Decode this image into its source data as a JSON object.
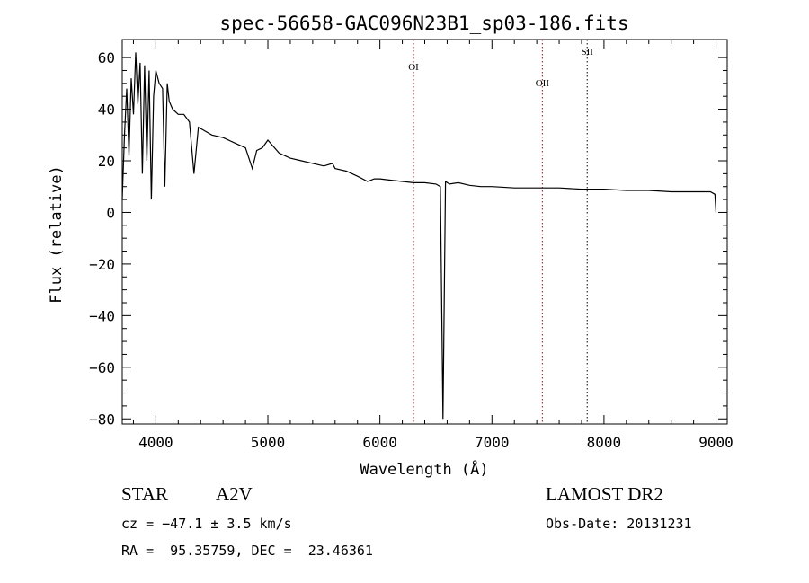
{
  "chart_data": {
    "type": "line",
    "title": "spec-56658-GAC096N23B1_sp03-186.fits",
    "xlabel": "Wavelength (Å)",
    "ylabel": "Flux (relative)",
    "xlim": [
      3700,
      9100
    ],
    "ylim": [
      -82,
      67
    ],
    "xticks": [
      4000,
      5000,
      6000,
      7000,
      8000,
      9000
    ],
    "yticks": [
      -80,
      -60,
      -40,
      -20,
      0,
      20,
      40,
      60
    ],
    "grid": false,
    "line_color": "#000000",
    "series": [
      {
        "x": [
          3700,
          3720,
          3740,
          3760,
          3780,
          3800,
          3820,
          3840,
          3860,
          3880,
          3900,
          3920,
          3940,
          3960,
          3980,
          4000,
          4030,
          4060,
          4080,
          4102,
          4120,
          4150,
          4200,
          4250,
          4300,
          4340,
          4380,
          4420,
          4500,
          4600,
          4700,
          4800,
          4861,
          4900,
          4950,
          5000,
          5100,
          5200,
          5300,
          5400,
          5500,
          5577,
          5600,
          5700,
          5800,
          5890,
          5950,
          6000,
          6100,
          6200,
          6300,
          6400,
          6500,
          6540,
          6563,
          6585,
          6620,
          6700,
          6800,
          6900,
          7000,
          7200,
          7400,
          7600,
          7800,
          8000,
          8200,
          8400,
          8600,
          8800,
          8950,
          8990,
          9000
        ],
        "y": [
          5,
          30,
          48,
          22,
          52,
          38,
          62,
          42,
          58,
          15,
          57,
          20,
          55,
          5,
          45,
          55,
          50,
          48,
          10,
          50,
          43,
          40,
          38,
          38,
          35,
          15,
          33,
          32,
          30,
          29,
          27,
          25,
          17,
          24,
          25,
          28,
          23,
          21,
          20,
          19,
          18,
          19,
          17,
          16,
          14,
          12,
          13,
          13,
          12.5,
          12,
          11.5,
          11.5,
          11,
          10,
          -80,
          12,
          11,
          11.5,
          10.5,
          10,
          10,
          9.5,
          9.5,
          9.5,
          9,
          9,
          8.5,
          8.5,
          8,
          8,
          8,
          7,
          0
        ]
      }
    ],
    "annotations": [
      {
        "label": "OI",
        "x": 6300,
        "color": "#8b1a1a",
        "style": "dotted"
      },
      {
        "label": "OII",
        "x": 7450,
        "color": "#8b1a1a",
        "style": "dotted"
      },
      {
        "label": "SII",
        "x": 7850,
        "color": "#000000",
        "style": "dotted"
      }
    ]
  },
  "info": {
    "class_label": "STAR",
    "subclass": "A2V",
    "cz": "cz = −47.1 ± 3.5 km/s",
    "coords": "RA =  95.35759, DEC =  23.46361",
    "survey": "LAMOST DR2",
    "obs_date": "Obs-Date: 20131231"
  }
}
